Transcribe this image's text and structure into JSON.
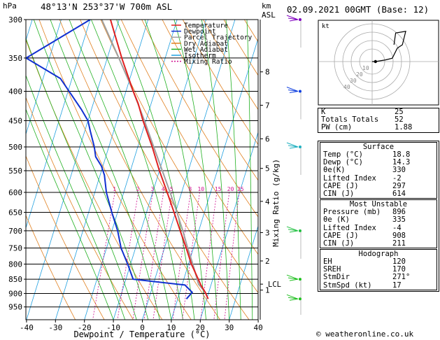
{
  "header": {
    "station": "48°13'N  253°37'W  700m  ASL",
    "pressure_unit": "hPa",
    "km_unit_1": "km",
    "km_unit_2": "ASL",
    "date": "02.09.2021  00GMT  (Base: 12)"
  },
  "footer": {
    "credit": "© weatheronline.co.uk"
  },
  "colors": {
    "temperature": "#e02020",
    "dewpoint": "#1030d0",
    "parcel": "#a0a0a0",
    "dry_adiabat": "#e08020",
    "wet_adiabat": "#20b020",
    "isotherm": "#20a0e0",
    "mixing_ratio": "#d01090"
  },
  "chart_data": [
    {
      "type": "line",
      "subtype": "skew-t log-p diagram",
      "xlabel": "Dewpoint  /  Temperature  (°C)",
      "ylabel": "hPa",
      "right_label": "Mixing Ratio (g/kg)",
      "xlim": [
        -40,
        40
      ],
      "ylim": [
        1000,
        300
      ],
      "y_scale": "log",
      "x_ticks": [
        -40,
        -30,
        -20,
        -10,
        0,
        10,
        20,
        30,
        40
      ],
      "pressure_levels": [
        300,
        350,
        400,
        450,
        500,
        550,
        600,
        650,
        700,
        750,
        800,
        850,
        900,
        950
      ],
      "km_ticks": [
        {
          "p": 370,
          "label": "8"
        },
        {
          "p": 423,
          "label": "7"
        },
        {
          "p": 484,
          "label": "6"
        },
        {
          "p": 545,
          "label": "5"
        },
        {
          "p": 622,
          "label": "4"
        },
        {
          "p": 705,
          "label": "3"
        },
        {
          "p": 790,
          "label": "2"
        },
        {
          "p": 888,
          "label": "1"
        }
      ],
      "lcl": {
        "p": 867,
        "label": "LCL"
      },
      "mixing_ratio_labels": [
        "1",
        "2",
        "3",
        "4",
        "5",
        "8",
        "10",
        "15",
        "20",
        "25"
      ],
      "mixing_ratio_values": [
        1,
        2,
        3,
        4,
        5,
        8,
        10,
        15,
        20,
        25
      ],
      "legend": [
        "Temperature",
        "Dewpoint",
        "Parcel Trajectory",
        "Dry Adiabat",
        "Wet Adiabat",
        "Isotherm",
        "Mixing Ratio"
      ],
      "legend_position": "top-right",
      "series": [
        {
          "name": "Temperature",
          "p": [
            920,
            896,
            870,
            850,
            800,
            750,
            700,
            650,
            600,
            550,
            500,
            450,
            420,
            400,
            350,
            300
          ],
          "t": [
            20.5,
            18.8,
            16.5,
            15.0,
            11.0,
            7.5,
            3.6,
            -0.5,
            -5.0,
            -10.0,
            -15.0,
            -21.0,
            -24.5,
            -27.5,
            -35.0,
            -43.0
          ]
        },
        {
          "name": "Dewpoint",
          "p": [
            920,
            896,
            870,
            850,
            800,
            750,
            700,
            650,
            600,
            560,
            540,
            520,
            500,
            470,
            450,
            430,
            380,
            350,
            300
          ],
          "t": [
            13.0,
            14.3,
            11.0,
            -7.5,
            -11.0,
            -15.0,
            -18.0,
            -22.0,
            -26.0,
            -28.5,
            -30.5,
            -33.5,
            -35.0,
            -38.0,
            -40.0,
            -43.5,
            -54.0,
            -68.0,
            -50.0
          ]
        },
        {
          "name": "Parcel Trajectory",
          "p": [
            896,
            867,
            850,
            800,
            750,
            700,
            650,
            600,
            550,
            500,
            450,
            400,
            350,
            300
          ],
          "t": [
            18.8,
            15.6,
            14.6,
            11.5,
            8.0,
            4.5,
            0.5,
            -4.0,
            -9.0,
            -14.5,
            -20.5,
            -27.5,
            -36.0,
            -46.0
          ]
        }
      ]
    },
    {
      "type": "scatter",
      "subtype": "hodograph",
      "title": "kt",
      "ring_labels": [
        "10",
        "20",
        "30",
        "40"
      ],
      "u": [
        0,
        2,
        8,
        12,
        15,
        18,
        20,
        14,
        13
      ],
      "v": [
        0,
        0,
        1,
        2,
        8,
        10,
        18,
        17,
        10
      ]
    }
  ],
  "indices": [
    {
      "label": "K",
      "value": "25"
    },
    {
      "label": "Totals Totals",
      "value": "52"
    },
    {
      "label": "PW (cm)",
      "value": "1.88"
    }
  ],
  "surface": {
    "title": "Surface",
    "rows": [
      {
        "label": "Temp (°C)",
        "value": "18.8"
      },
      {
        "label": "Dewp (°C)",
        "value": "14.3"
      },
      {
        "label": "θe(K)",
        "value": "330"
      },
      {
        "label": "Lifted Index",
        "value": "-2"
      },
      {
        "label": "CAPE (J)",
        "value": "297"
      },
      {
        "label": "CIN (J)",
        "value": "614"
      }
    ]
  },
  "most_unstable": {
    "title": "Most Unstable",
    "rows": [
      {
        "label": "Pressure (mb)",
        "value": "896"
      },
      {
        "label": "θe (K)",
        "value": "335"
      },
      {
        "label": "Lifted Index",
        "value": "-4"
      },
      {
        "label": "CAPE (J)",
        "value": "908"
      },
      {
        "label": "CIN (J)",
        "value": "211"
      }
    ]
  },
  "hodograph_stats": {
    "title": "Hodograph",
    "rows": [
      {
        "label": "EH",
        "value": "120"
      },
      {
        "label": "SREH",
        "value": "170"
      },
      {
        "label": "StmDir",
        "value": "271°"
      },
      {
        "label": "StmSpd (kt)",
        "value": "17"
      }
    ]
  }
}
